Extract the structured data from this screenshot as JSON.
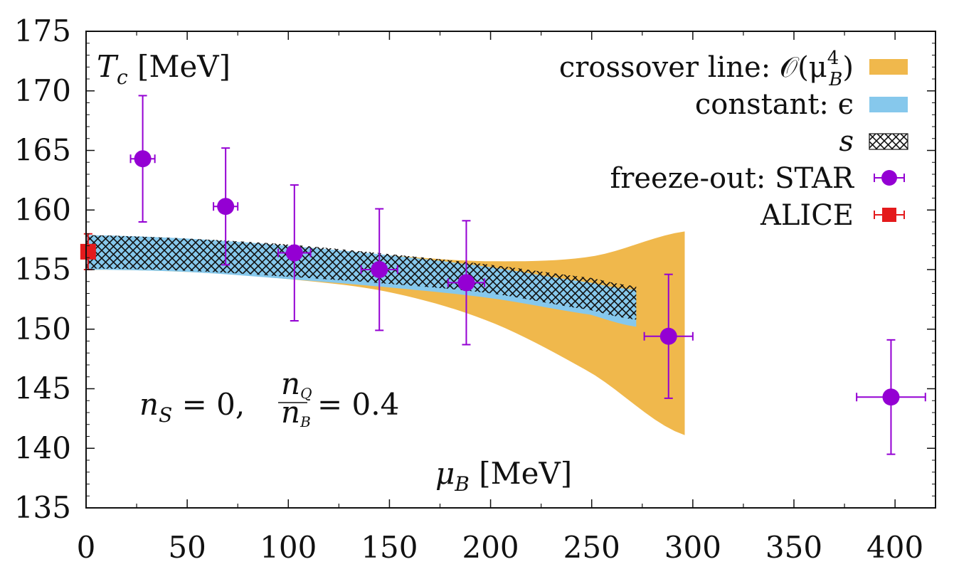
{
  "chart_data": {
    "type": "line",
    "xlim": [
      0,
      420
    ],
    "ylim": [
      135,
      175
    ],
    "x_ticks": [
      0,
      50,
      100,
      150,
      200,
      250,
      300,
      350,
      400
    ],
    "y_ticks": [
      135,
      140,
      145,
      150,
      155,
      160,
      165,
      170,
      175
    ],
    "grid": false,
    "legend_position": "top-right",
    "ylabel": {
      "main": "T",
      "sub": "c",
      "unit": " [MeV]"
    },
    "xlabel": {
      "main": "μ",
      "sub": "B",
      "unit": " [MeV]"
    },
    "annotation": {
      "nS": "n",
      "nS_sub": "S",
      "nS_eq": " = 0,",
      "frac_num": "n",
      "frac_num_sub": "Q",
      "frac_den": "n",
      "frac_den_sub": "B",
      "frac_eq": "= 0.4"
    },
    "legend": [
      {
        "label": "crossover line: 𝒪(μ",
        "label_sup": "4",
        "label_sub": "B",
        "label_end": ")",
        "kind": "band",
        "color": "#f0b84c"
      },
      {
        "label": "constant: ϵ",
        "kind": "band",
        "color": "#86c8ec"
      },
      {
        "label": "s",
        "kind": "hatch",
        "color": "#111111"
      },
      {
        "label": "freeze-out:  STAR",
        "kind": "circle",
        "color": "#9400d3"
      },
      {
        "label": "ALICE",
        "kind": "square",
        "color": "#e41a1c"
      }
    ],
    "series": [
      {
        "name": "crossover line: 𝒪(μB⁴)",
        "kind": "band",
        "color": "#f0b84c",
        "x": [
          0,
          50,
          100,
          150,
          200,
          250,
          296
        ],
        "upper": [
          157.8,
          157.5,
          156.9,
          156.2,
          155.7,
          156.1,
          158.2
        ],
        "lower": [
          155.0,
          154.8,
          154.2,
          153.1,
          150.6,
          146.3,
          141.1
        ]
      },
      {
        "name": "constant: ϵ",
        "kind": "band",
        "color": "#86c8ec",
        "x": [
          0,
          50,
          100,
          150,
          200,
          250,
          272
        ],
        "upper": [
          157.9,
          157.6,
          157.0,
          156.2,
          155.2,
          153.9,
          153.3
        ],
        "lower": [
          155.0,
          154.8,
          154.2,
          153.5,
          152.6,
          151.2,
          150.2
        ]
      },
      {
        "name": "s",
        "kind": "hatch",
        "color": "#111111",
        "x": [
          0,
          50,
          100,
          150,
          200,
          250,
          272
        ],
        "upper": [
          157.9,
          157.6,
          157.1,
          156.3,
          155.4,
          154.3,
          153.6
        ],
        "lower": [
          155.1,
          154.9,
          154.4,
          153.8,
          153.0,
          151.6,
          150.8
        ]
      },
      {
        "name": "freeze-out: STAR",
        "kind": "errorpoints",
        "color": "#9400d3",
        "points": [
          {
            "x": 28,
            "y": 164.3,
            "xerr": 6,
            "yerr_up": 5.3,
            "yerr_dn": 5.3
          },
          {
            "x": 69,
            "y": 160.3,
            "xerr": 6,
            "yerr_up": 4.9,
            "yerr_dn": 4.9
          },
          {
            "x": 103,
            "y": 156.4,
            "xerr": 8,
            "yerr_up": 5.7,
            "yerr_dn": 5.7
          },
          {
            "x": 145,
            "y": 155.0,
            "xerr": 9,
            "yerr_up": 5.1,
            "yerr_dn": 5.1
          },
          {
            "x": 188,
            "y": 153.9,
            "xerr": 9,
            "yerr_up": 5.2,
            "yerr_dn": 5.2
          },
          {
            "x": 288,
            "y": 149.4,
            "xerr": 12,
            "yerr_up": 5.2,
            "yerr_dn": 5.2
          },
          {
            "x": 398,
            "y": 144.3,
            "xerr": 17,
            "yerr_up": 4.8,
            "yerr_dn": 4.8
          }
        ]
      },
      {
        "name": "ALICE",
        "kind": "errorpoints",
        "color": "#e41a1c",
        "points": [
          {
            "x": 1,
            "y": 156.5,
            "xerr": 1.5,
            "yerr_up": 1.5,
            "yerr_dn": 1.5
          }
        ]
      }
    ]
  }
}
